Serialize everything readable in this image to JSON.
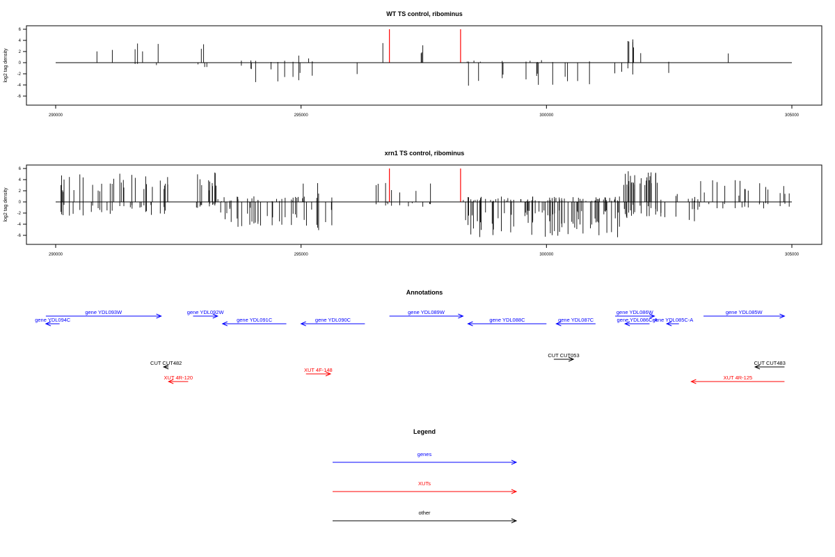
{
  "chart_data": [
    {
      "type": "bar",
      "title": "WT TS control, ribominus",
      "ylabel": "log2 tag density",
      "xlabel": "",
      "xlim": [
        290000,
        305000
      ],
      "ylim": [
        -7,
        6
      ],
      "x_ticks": [
        290000,
        295000,
        300000,
        305000
      ],
      "y_ticks": [
        6,
        4,
        2,
        0,
        -2,
        -4,
        -6
      ],
      "bar_color": "#000000",
      "highlight_color": "#ff0000",
      "highlights": [
        {
          "x": 296800,
          "y": 6
        },
        {
          "x": 298250,
          "y": 6
        }
      ],
      "segments": [
        {
          "x0": 290050,
          "x1": 291300,
          "pos": [
            0.8,
            2.6
          ],
          "neg": [
            0,
            0
          ],
          "density": 0.05
        },
        {
          "x0": 291300,
          "x1": 292300,
          "pos": [
            1,
            3.8
          ],
          "neg": [
            0,
            0.5
          ],
          "density": 0.07
        },
        {
          "x0": 292300,
          "x1": 292500,
          "pos": [
            0,
            0
          ],
          "neg": [
            0.3,
            1.2
          ],
          "density": 0.02
        },
        {
          "x0": 292800,
          "x1": 293200,
          "pos": [
            1.2,
            4.2
          ],
          "neg": [
            0.3,
            1.5
          ],
          "density": 0.12
        },
        {
          "x0": 293300,
          "x1": 295700,
          "pos": [
            0,
            0.4
          ],
          "neg": [
            0.5,
            3.5
          ],
          "density": 0.05
        },
        {
          "x0": 294800,
          "x1": 295400,
          "pos": [
            0.3,
            1.8
          ],
          "neg": [
            1,
            4.2
          ],
          "density": 0.04
        },
        {
          "x0": 295800,
          "x1": 296500,
          "pos": [
            0,
            0
          ],
          "neg": [
            0.3,
            2.2
          ],
          "density": 0.03
        },
        {
          "x0": 296500,
          "x1": 297900,
          "pos": [
            0.8,
            3.6
          ],
          "neg": [
            0,
            0
          ],
          "density": 0.04
        },
        {
          "x0": 298300,
          "x1": 300900,
          "pos": [
            0,
            0.5
          ],
          "neg": [
            1,
            4.2
          ],
          "density": 0.08
        },
        {
          "x0": 300900,
          "x1": 301500,
          "pos": [
            0,
            0
          ],
          "neg": [
            0.3,
            2
          ],
          "density": 0.03
        },
        {
          "x0": 301500,
          "x1": 302300,
          "pos": [
            1,
            4.5
          ],
          "neg": [
            0.5,
            2.8
          ],
          "density": 0.1
        },
        {
          "x0": 302300,
          "x1": 302600,
          "pos": [
            0,
            0.5
          ],
          "neg": [
            0.8,
            3.2
          ],
          "density": 0.08
        },
        {
          "x0": 303000,
          "x1": 304200,
          "pos": [
            0.8,
            1.9
          ],
          "neg": [
            0,
            1.5
          ],
          "density": 0.006
        }
      ]
    },
    {
      "type": "bar",
      "title": "xrn1 TS control, ribominus",
      "ylabel": "log2 tag density",
      "xlabel": "",
      "xlim": [
        290000,
        305000
      ],
      "ylim": [
        -7,
        6
      ],
      "x_ticks": [
        290000,
        295000,
        300000,
        305000
      ],
      "y_ticks": [
        6,
        4,
        2,
        0,
        -2,
        -4,
        -6
      ],
      "bar_color": "#000000",
      "highlight_color": "#ff0000",
      "highlights": [
        {
          "x": 296800,
          "y": 6
        },
        {
          "x": 298250,
          "y": 6
        }
      ],
      "segments": [
        {
          "x0": 290050,
          "x1": 292300,
          "pos": [
            1.5,
            5.2
          ],
          "neg": [
            0.5,
            2.5
          ],
          "density": 0.22
        },
        {
          "x0": 292800,
          "x1": 293300,
          "pos": [
            1.5,
            5.8
          ],
          "neg": [
            0.3,
            1.5
          ],
          "density": 0.35
        },
        {
          "x0": 293300,
          "x1": 295700,
          "pos": [
            0,
            1
          ],
          "neg": [
            1,
            4.5
          ],
          "density": 0.2
        },
        {
          "x0": 295000,
          "x1": 295400,
          "pos": [
            1,
            3.5
          ],
          "neg": [
            2,
            6.8
          ],
          "density": 0.15
        },
        {
          "x0": 296500,
          "x1": 298000,
          "pos": [
            1,
            3.5
          ],
          "neg": [
            0,
            1
          ],
          "density": 0.12
        },
        {
          "x0": 298300,
          "x1": 301500,
          "pos": [
            0,
            1
          ],
          "neg": [
            1.5,
            6.5
          ],
          "density": 0.35
        },
        {
          "x0": 301500,
          "x1": 302300,
          "pos": [
            2,
            6
          ],
          "neg": [
            0.5,
            3
          ],
          "density": 0.4
        },
        {
          "x0": 302300,
          "x1": 303100,
          "pos": [
            0,
            1.5
          ],
          "neg": [
            1,
            3.5
          ],
          "density": 0.2
        },
        {
          "x0": 303100,
          "x1": 305000,
          "pos": [
            1,
            4.5
          ],
          "neg": [
            0,
            1.2
          ],
          "density": 0.15
        }
      ]
    }
  ],
  "annotations": {
    "title": "Annotations",
    "features": [
      {
        "label": "gene YDL094C",
        "color": "blue",
        "x0": 290080,
        "x1": 289800,
        "row": 2
      },
      {
        "label": "gene YDL093W",
        "color": "blue",
        "x0": 289800,
        "x1": 292150,
        "row": 1
      },
      {
        "label": "gene YDL092W",
        "color": "blue",
        "x0": 292800,
        "x1": 293300,
        "row": 1
      },
      {
        "label": "gene YDL091C",
        "color": "blue",
        "x0": 294700,
        "x1": 293400,
        "row": 2
      },
      {
        "label": "gene YDL090C",
        "color": "blue",
        "x0": 296300,
        "x1": 295000,
        "row": 2
      },
      {
        "label": "gene YDL089W",
        "color": "blue",
        "x0": 296800,
        "x1": 298300,
        "row": 1
      },
      {
        "label": "gene YDL088C",
        "color": "blue",
        "x0": 300000,
        "x1": 298400,
        "row": 2
      },
      {
        "label": "gene YDL087C",
        "color": "blue",
        "x0": 301000,
        "x1": 300200,
        "row": 2
      },
      {
        "label": "gene YDL086W",
        "color": "blue",
        "x0": 301400,
        "x1": 302200,
        "row": 1
      },
      {
        "label": "gene YDL086C-A",
        "color": "blue",
        "x0": 302100,
        "x1": 301600,
        "row": 2
      },
      {
        "label": "gene YDL085C-A",
        "color": "blue",
        "x0": 302700,
        "x1": 302450,
        "row": 2
      },
      {
        "label": "gene YDL085W",
        "color": "blue",
        "x0": 303200,
        "x1": 304850,
        "row": 1
      },
      {
        "label": "CUT CUT482",
        "color": "black",
        "x0": 292300,
        "x1": 292200,
        "row": 4
      },
      {
        "label": "CUT CUT053",
        "color": "black",
        "x0": 300150,
        "x1": 300550,
        "row": 3
      },
      {
        "label": "CUT CUT483",
        "color": "black",
        "x0": 304850,
        "x1": 304250,
        "row": 4
      },
      {
        "label": "XUT 4R-120",
        "color": "red",
        "x0": 292700,
        "x1": 292300,
        "row": 5
      },
      {
        "label": "XUT 4F-148",
        "color": "red",
        "x0": 295100,
        "x1": 295600,
        "row": 6
      },
      {
        "label": "XUT 4R-125",
        "color": "red",
        "x0": 304850,
        "x1": 302950,
        "row": 5
      }
    ]
  },
  "legend": {
    "title": "Legend",
    "items": [
      {
        "label": "genes",
        "color": "blue"
      },
      {
        "label": "XUTs",
        "color": "red"
      },
      {
        "label": "other",
        "color": "black"
      }
    ]
  }
}
